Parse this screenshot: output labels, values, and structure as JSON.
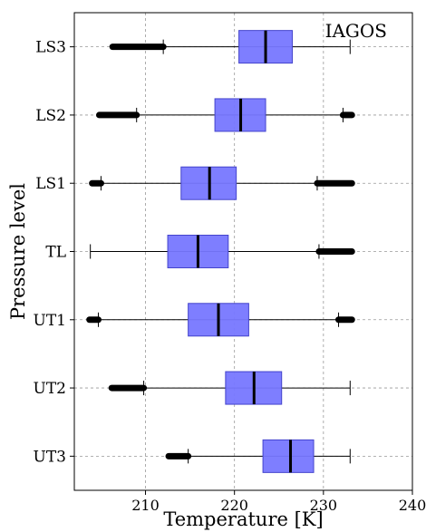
{
  "chart_data": {
    "type": "boxplot",
    "orientation": "horizontal",
    "xlabel": "Temperature [K]",
    "ylabel": "Pressure level",
    "annotation": "IAGOS",
    "annotation_position": "top-right",
    "xlim": [
      202,
      240
    ],
    "xticks": [
      210,
      220,
      230,
      240
    ],
    "grid": true,
    "box_color": "#7777ff",
    "box_edge_color": "#4444cc",
    "median_color": "#000000",
    "categories": [
      "LS3",
      "LS2",
      "LS1",
      "TL",
      "UT1",
      "UT2",
      "UT3"
    ],
    "boxes": [
      {
        "label": "LS3",
        "whisker_low": 212.0,
        "q1": 220.5,
        "median": 223.5,
        "q3": 226.5,
        "whisker_high": 233.0,
        "outliers_low": [
          206.3,
          212.0
        ],
        "outliers_high": null
      },
      {
        "label": "LS2",
        "whisker_low": 209.0,
        "q1": 217.8,
        "median": 220.7,
        "q3": 223.5,
        "whisker_high": 232.2,
        "outliers_low": [
          204.8,
          209.0
        ],
        "outliers_high": [
          232.2,
          233.2
        ]
      },
      {
        "label": "LS1",
        "whisker_low": 205.0,
        "q1": 214.0,
        "median": 217.2,
        "q3": 220.2,
        "whisker_high": 229.3,
        "outliers_low": [
          204.0,
          205.0
        ],
        "outliers_high": [
          229.3,
          233.2
        ]
      },
      {
        "label": "TL",
        "whisker_low": 203.8,
        "q1": 212.5,
        "median": 215.9,
        "q3": 219.3,
        "whisker_high": 229.5,
        "outliers_low": null,
        "outliers_high": [
          229.5,
          233.2
        ]
      },
      {
        "label": "UT1",
        "whisker_low": 204.7,
        "q1": 214.8,
        "median": 218.2,
        "q3": 221.6,
        "whisker_high": 231.7,
        "outliers_low": [
          203.7,
          204.7
        ],
        "outliers_high": [
          231.7,
          233.2
        ]
      },
      {
        "label": "UT2",
        "whisker_low": 209.8,
        "q1": 219.0,
        "median": 222.2,
        "q3": 225.3,
        "whisker_high": 233.0,
        "outliers_low": [
          206.2,
          209.8
        ],
        "outliers_high": null
      },
      {
        "label": "UT3",
        "whisker_low": 214.8,
        "q1": 223.2,
        "median": 226.3,
        "q3": 228.9,
        "whisker_high": 233.0,
        "outliers_low": [
          212.6,
          214.8
        ],
        "outliers_high": null
      }
    ]
  }
}
